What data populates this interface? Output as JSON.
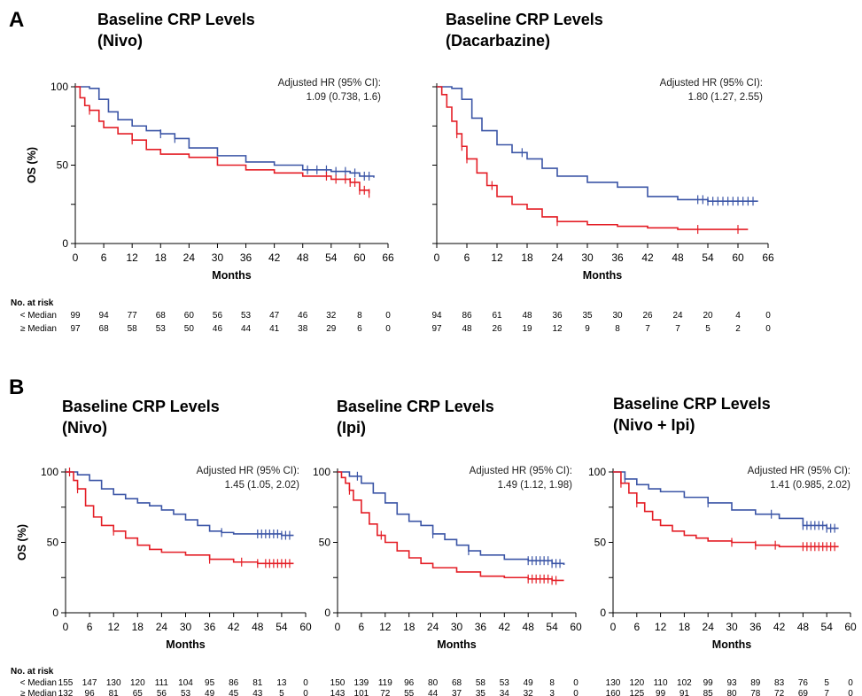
{
  "figure": {
    "risk_header": "No. at risk",
    "x_axis_label": "Months",
    "y_axis_label": "OS (%)",
    "colors": {
      "below_median": "#3b55a6",
      "above_median": "#e41e26"
    }
  },
  "panels": [
    {
      "panel_label": "A",
      "title_line1": "Baseline CRP Levels",
      "title_line2": "(Nivo)",
      "hr_label": "Adjusted HR (95% CI):",
      "hr_value": "1.09 (0.738, 1.6)",
      "risk": {
        "below": {
          "label": "< Median",
          "values": [
            "99",
            "94",
            "77",
            "68",
            "60",
            "56",
            "53",
            "47",
            "46",
            "32",
            "8",
            "0"
          ]
        },
        "above": {
          "label": "≥ Median",
          "values": [
            "97",
            "68",
            "58",
            "53",
            "50",
            "46",
            "44",
            "41",
            "38",
            "29",
            "6",
            "0"
          ]
        }
      }
    },
    {
      "panel_label": "",
      "title_line1": "Baseline CRP Levels",
      "title_line2": "(Dacarbazine)",
      "hr_label": "Adjusted HR (95% CI):",
      "hr_value": "1.80 (1.27, 2.55)",
      "risk": {
        "below": {
          "label": "",
          "values": [
            "94",
            "86",
            "61",
            "48",
            "36",
            "35",
            "30",
            "26",
            "24",
            "20",
            "4",
            "0"
          ]
        },
        "above": {
          "label": "",
          "values": [
            "97",
            "48",
            "26",
            "19",
            "12",
            "9",
            "8",
            "7",
            "7",
            "5",
            "2",
            "0"
          ]
        }
      }
    },
    {
      "panel_label": "B",
      "title_line1": "Baseline CRP Levels",
      "title_line2": "(Nivo)",
      "hr_label": "Adjusted HR (95% CI):",
      "hr_value": "1.45 (1.05, 2.02)",
      "risk": {
        "below": {
          "label": "< Median",
          "values": [
            "155",
            "147",
            "130",
            "120",
            "111",
            "104",
            "95",
            "86",
            "81",
            "13",
            "0"
          ]
        },
        "above": {
          "label": "≥ Median",
          "values": [
            "132",
            "96",
            "81",
            "65",
            "56",
            "53",
            "49",
            "45",
            "43",
            "5",
            "0"
          ]
        }
      }
    },
    {
      "panel_label": "",
      "title_line1": "Baseline CRP Levels",
      "title_line2": "(Ipi)",
      "hr_label": "Adjusted HR (95% CI):",
      "hr_value": "1.49 (1.12, 1.98)",
      "risk": {
        "below": {
          "label": "",
          "values": [
            "150",
            "139",
            "119",
            "96",
            "80",
            "68",
            "58",
            "53",
            "49",
            "8",
            "0"
          ]
        },
        "above": {
          "label": "",
          "values": [
            "143",
            "101",
            "72",
            "55",
            "44",
            "37",
            "35",
            "34",
            "32",
            "3",
            "0"
          ]
        }
      }
    },
    {
      "panel_label": "",
      "title_line1": "Baseline CRP Levels",
      "title_line2": "(Nivo + Ipi)",
      "hr_label": "Adjusted HR (95% CI):",
      "hr_value": "1.41 (0.985, 2.02)",
      "risk": {
        "below": {
          "label": "",
          "values": [
            "130",
            "120",
            "110",
            "102",
            "99",
            "93",
            "89",
            "83",
            "76",
            "5",
            "0"
          ]
        },
        "above": {
          "label": "",
          "values": [
            "160",
            "125",
            "99",
            "91",
            "85",
            "80",
            "78",
            "72",
            "69",
            "7",
            "0"
          ]
        }
      }
    }
  ],
  "chart_data": [
    {
      "type": "line",
      "title": "Baseline CRP Levels (Nivo)",
      "xlabel": "Months",
      "ylabel": "OS (%)",
      "xlim": [
        0,
        66
      ],
      "ylim": [
        0,
        100
      ],
      "x_ticks": [
        0,
        6,
        12,
        18,
        24,
        30,
        36,
        42,
        48,
        54,
        60,
        66
      ],
      "y_ticks": [
        0,
        50,
        100
      ],
      "series": [
        {
          "name": "< Median",
          "color": "#3b55a6",
          "x": [
            0,
            3,
            5,
            7,
            9,
            12,
            15,
            18,
            21,
            24,
            30,
            36,
            42,
            48,
            54,
            58,
            60,
            63
          ],
          "y": [
            100,
            99,
            92,
            84,
            79,
            75,
            72,
            70,
            67,
            61,
            56,
            52,
            50,
            47,
            46,
            45,
            43,
            42
          ],
          "censor_x": [
            18,
            21,
            49,
            51,
            53,
            55,
            57,
            59,
            61,
            62
          ]
        },
        {
          "name": "≥ Median",
          "color": "#e41e26",
          "x": [
            0,
            1,
            2,
            3,
            5,
            6,
            9,
            12,
            15,
            18,
            24,
            30,
            36,
            42,
            48,
            54,
            58,
            60,
            62
          ],
          "y": [
            100,
            93,
            88,
            85,
            78,
            74,
            70,
            66,
            60,
            57,
            55,
            50,
            47,
            45,
            43,
            41,
            39,
            34,
            32
          ],
          "censor_x": [
            3,
            12,
            53,
            55,
            57,
            58,
            59,
            60,
            61,
            62
          ]
        }
      ]
    },
    {
      "type": "line",
      "title": "Baseline CRP Levels (Dacarbazine)",
      "xlabel": "Months",
      "ylabel": "",
      "xlim": [
        0,
        66
      ],
      "ylim": [
        0,
        100
      ],
      "x_ticks": [
        0,
        6,
        12,
        18,
        24,
        30,
        36,
        42,
        48,
        54,
        60,
        66
      ],
      "y_ticks": [
        0,
        50,
        100
      ],
      "series": [
        {
          "name": "< Median",
          "color": "#3b55a6",
          "x": [
            0,
            3,
            5,
            7,
            9,
            12,
            15,
            18,
            21,
            24,
            30,
            36,
            42,
            48,
            54,
            60,
            64
          ],
          "y": [
            100,
            99,
            92,
            80,
            72,
            63,
            58,
            54,
            48,
            43,
            39,
            36,
            30,
            28,
            27,
            27,
            27
          ],
          "censor_x": [
            17,
            52,
            53,
            54,
            55,
            56,
            57,
            58,
            59,
            60,
            61,
            62,
            63
          ]
        },
        {
          "name": "≥ Median",
          "color": "#e41e26",
          "x": [
            0,
            1,
            2,
            3,
            4,
            5,
            6,
            8,
            10,
            12,
            15,
            18,
            21,
            24,
            30,
            36,
            42,
            48,
            54,
            60,
            62
          ],
          "y": [
            100,
            95,
            87,
            78,
            70,
            62,
            54,
            45,
            37,
            30,
            25,
            22,
            17,
            14,
            12,
            11,
            10,
            9,
            9,
            9,
            9
          ],
          "censor_x": [
            4,
            5,
            6,
            11,
            24,
            52,
            60
          ]
        }
      ]
    },
    {
      "type": "line",
      "title": "Baseline CRP Levels (Nivo)",
      "xlabel": "Months",
      "ylabel": "OS (%)",
      "xlim": [
        0,
        60
      ],
      "ylim": [
        0,
        100
      ],
      "x_ticks": [
        0,
        6,
        12,
        18,
        24,
        30,
        36,
        42,
        48,
        54,
        60
      ],
      "y_ticks": [
        0,
        50,
        100
      ],
      "series": [
        {
          "name": "< Median",
          "color": "#3b55a6",
          "x": [
            0,
            3,
            6,
            9,
            12,
            15,
            18,
            21,
            24,
            27,
            30,
            33,
            36,
            39,
            42,
            48,
            54,
            57
          ],
          "y": [
            100,
            98,
            94,
            88,
            84,
            81,
            78,
            76,
            73,
            70,
            66,
            62,
            58,
            57,
            56,
            56,
            55,
            55
          ],
          "censor_x": [
            39,
            48,
            49,
            50,
            51,
            52,
            53,
            54,
            55,
            56
          ]
        },
        {
          "name": "≥ Median",
          "color": "#e41e26",
          "x": [
            0,
            2,
            3,
            5,
            7,
            9,
            12,
            15,
            18,
            21,
            24,
            30,
            36,
            42,
            48,
            54,
            57
          ],
          "y": [
            100,
            94,
            88,
            76,
            68,
            62,
            58,
            53,
            48,
            45,
            43,
            41,
            38,
            36,
            35,
            35,
            35
          ],
          "censor_x": [
            1,
            3,
            12,
            36,
            44,
            48,
            50,
            51,
            52,
            53,
            54,
            55,
            56
          ]
        }
      ]
    },
    {
      "type": "line",
      "title": "Baseline CRP Levels (Ipi)",
      "xlabel": "Months",
      "ylabel": "",
      "xlim": [
        0,
        60
      ],
      "ylim": [
        0,
        100
      ],
      "x_ticks": [
        0,
        6,
        12,
        18,
        24,
        30,
        36,
        42,
        48,
        54,
        60
      ],
      "y_ticks": [
        0,
        50,
        100
      ],
      "series": [
        {
          "name": "< Median",
          "color": "#3b55a6",
          "x": [
            0,
            3,
            6,
            9,
            12,
            15,
            18,
            21,
            24,
            27,
            30,
            33,
            36,
            42,
            48,
            54,
            57
          ],
          "y": [
            100,
            97,
            92,
            85,
            78,
            70,
            65,
            62,
            56,
            52,
            48,
            44,
            41,
            38,
            37,
            35,
            34
          ],
          "censor_x": [
            5,
            24,
            33,
            48,
            49,
            50,
            51,
            52,
            53,
            54,
            55,
            56
          ]
        },
        {
          "name": "≥ Median",
          "color": "#e41e26",
          "x": [
            0,
            1,
            2,
            3,
            4,
            6,
            8,
            10,
            12,
            15,
            18,
            21,
            24,
            30,
            36,
            42,
            48,
            54,
            57
          ],
          "y": [
            100,
            96,
            92,
            87,
            80,
            71,
            63,
            55,
            50,
            44,
            39,
            35,
            32,
            29,
            26,
            25,
            24,
            23,
            23
          ],
          "censor_x": [
            3,
            11,
            48,
            49,
            50,
            51,
            52,
            53,
            54,
            55
          ]
        }
      ]
    },
    {
      "type": "line",
      "title": "Baseline CRP Levels (Nivo + Ipi)",
      "xlabel": "Months",
      "ylabel": "",
      "xlim": [
        0,
        60
      ],
      "ylim": [
        0,
        100
      ],
      "x_ticks": [
        0,
        6,
        12,
        18,
        24,
        30,
        36,
        42,
        48,
        54,
        60
      ],
      "y_ticks": [
        0,
        50,
        100
      ],
      "series": [
        {
          "name": "< Median",
          "color": "#3b55a6",
          "x": [
            0,
            3,
            6,
            9,
            12,
            18,
            24,
            30,
            36,
            42,
            48,
            54,
            57
          ],
          "y": [
            100,
            95,
            91,
            88,
            86,
            82,
            78,
            73,
            70,
            67,
            62,
            60,
            60
          ],
          "censor_x": [
            3,
            24,
            40,
            48,
            49,
            50,
            51,
            52,
            53,
            54,
            55,
            56
          ]
        },
        {
          "name": "≥ Median",
          "color": "#e41e26",
          "x": [
            0,
            2,
            4,
            6,
            8,
            10,
            12,
            15,
            18,
            21,
            24,
            30,
            36,
            42,
            48,
            54,
            57
          ],
          "y": [
            100,
            92,
            85,
            78,
            72,
            66,
            62,
            58,
            55,
            53,
            51,
            50,
            48,
            47,
            47,
            47,
            47
          ],
          "censor_x": [
            2,
            6,
            30,
            36,
            41,
            48,
            49,
            50,
            51,
            52,
            53,
            54,
            55,
            56
          ]
        }
      ]
    }
  ]
}
